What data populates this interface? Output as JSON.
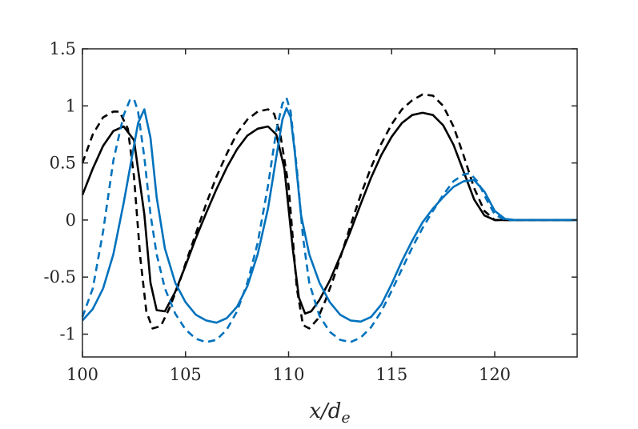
{
  "chart_data": {
    "type": "line",
    "title": "",
    "xlabel": "x/d",
    "xlabel_subscript": "e",
    "ylabel": "",
    "xlim": [
      100,
      124
    ],
    "ylim": [
      -1.2,
      1.5
    ],
    "xticks": [
      100,
      105,
      110,
      115,
      120
    ],
    "xtick_labels": [
      "100",
      "105",
      "110",
      "115",
      "120"
    ],
    "yticks": [
      1.5,
      1,
      0.5,
      0,
      -0.5,
      -1
    ],
    "ytick_labels": [
      "1.5",
      "1",
      "0.5",
      "0",
      "-0.5",
      "-1"
    ],
    "grid": false,
    "legend": "none",
    "series": [
      {
        "color": "#000000",
        "style": "solid",
        "x": [
          100,
          100.5,
          101,
          101.5,
          102,
          102.5,
          103,
          103.3,
          103.6,
          104,
          104.5,
          105,
          105.5,
          106,
          106.5,
          107,
          107.5,
          108,
          108.5,
          109,
          109.4,
          109.8,
          110.2,
          110.5,
          110.8,
          111.1,
          111.5,
          112,
          112.5,
          113,
          113.5,
          114,
          114.5,
          115,
          115.5,
          116,
          116.5,
          117,
          117.5,
          118,
          118.5,
          119,
          119.5,
          120,
          120.5,
          121,
          122,
          123,
          124
        ],
        "y": [
          0.22,
          0.45,
          0.65,
          0.78,
          0.82,
          0.7,
          0.05,
          -0.55,
          -0.79,
          -0.8,
          -0.63,
          -0.4,
          -0.16,
          0.06,
          0.27,
          0.46,
          0.62,
          0.74,
          0.8,
          0.82,
          0.75,
          0.45,
          -0.25,
          -0.68,
          -0.82,
          -0.8,
          -0.7,
          -0.53,
          -0.32,
          -0.1,
          0.14,
          0.37,
          0.57,
          0.73,
          0.85,
          0.92,
          0.94,
          0.92,
          0.83,
          0.66,
          0.42,
          0.18,
          0.04,
          0.0,
          0.0,
          0.0,
          0.0,
          0.0,
          0.0
        ]
      },
      {
        "color": "#000000",
        "style": "dashed",
        "x": [
          100,
          100.5,
          101,
          101.5,
          101.8,
          102.2,
          102.5,
          102.8,
          103.1,
          103.4,
          103.8,
          104.2,
          104.7,
          105,
          105.5,
          106,
          106.5,
          107,
          107.5,
          108,
          108.5,
          109,
          109.3,
          109.6,
          110,
          110.4,
          110.7,
          111,
          111.4,
          111.8,
          112.2,
          112.6,
          113,
          113.5,
          114,
          114.5,
          115,
          115.5,
          116,
          116.5,
          117,
          117.5,
          118,
          118.5,
          119,
          119.5,
          120,
          121,
          124
        ],
        "y": [
          0.5,
          0.75,
          0.9,
          0.95,
          0.95,
          0.8,
          0.38,
          -0.32,
          -0.8,
          -0.95,
          -0.93,
          -0.78,
          -0.55,
          -0.38,
          -0.12,
          0.14,
          0.38,
          0.58,
          0.76,
          0.88,
          0.95,
          0.97,
          0.93,
          0.75,
          0.3,
          -0.6,
          -0.92,
          -0.95,
          -0.87,
          -0.7,
          -0.5,
          -0.28,
          -0.05,
          0.22,
          0.46,
          0.67,
          0.84,
          0.97,
          1.05,
          1.1,
          1.09,
          1.0,
          0.82,
          0.56,
          0.28,
          0.08,
          0.0,
          0.0,
          0.0
        ]
      },
      {
        "color": "#0072BD",
        "style": "solid",
        "x": [
          100,
          100.5,
          101,
          101.5,
          102,
          102.4,
          102.7,
          103,
          103.3,
          103.6,
          104,
          104.5,
          105,
          105.5,
          106,
          106.5,
          107,
          107.5,
          108,
          108.5,
          109,
          109.4,
          109.7,
          109.9,
          110.1,
          110.3,
          110.6,
          111,
          111.5,
          112,
          112.5,
          113,
          113.5,
          114,
          114.5,
          115,
          115.5,
          116,
          116.5,
          117,
          117.5,
          118,
          118.5,
          119,
          119.5,
          120,
          120.5,
          121,
          122,
          124
        ],
        "y": [
          -0.88,
          -0.78,
          -0.6,
          -0.3,
          0.15,
          0.55,
          0.85,
          0.97,
          0.72,
          0.2,
          -0.25,
          -0.55,
          -0.72,
          -0.83,
          -0.88,
          -0.9,
          -0.86,
          -0.76,
          -0.58,
          -0.3,
          0.1,
          0.55,
          0.88,
          0.98,
          0.9,
          0.6,
          0.05,
          -0.3,
          -0.55,
          -0.72,
          -0.83,
          -0.88,
          -0.89,
          -0.85,
          -0.74,
          -0.56,
          -0.36,
          -0.18,
          -0.02,
          0.1,
          0.2,
          0.29,
          0.34,
          0.35,
          0.25,
          0.08,
          0.01,
          0.0,
          0.0,
          0.0
        ]
      },
      {
        "color": "#0072BD",
        "style": "dashed",
        "x": [
          100,
          100.5,
          101,
          101.5,
          102,
          102.3,
          102.5,
          102.7,
          103,
          103.3,
          103.6,
          104,
          104.5,
          105,
          105.5,
          106,
          106.5,
          107,
          107.5,
          108,
          108.5,
          109,
          109.4,
          109.7,
          109.9,
          110.1,
          110.4,
          110.7,
          111,
          111.5,
          112,
          112.5,
          113,
          113.5,
          114,
          114.5,
          115,
          115.5,
          116,
          116.5,
          117,
          117.5,
          118,
          118.5,
          118.8,
          119.2,
          119.6,
          120,
          120.5,
          121
        ],
        "y": [
          -0.85,
          -0.6,
          -0.1,
          0.52,
          0.92,
          1.05,
          1.06,
          0.95,
          0.55,
          0.05,
          -0.3,
          -0.6,
          -0.82,
          -0.96,
          -1.04,
          -1.07,
          -1.05,
          -0.96,
          -0.8,
          -0.55,
          -0.2,
          0.3,
          0.78,
          1.02,
          1.07,
          0.95,
          0.45,
          -0.15,
          -0.55,
          -0.84,
          -0.98,
          -1.05,
          -1.07,
          -1.03,
          -0.94,
          -0.8,
          -0.62,
          -0.43,
          -0.24,
          -0.07,
          0.08,
          0.22,
          0.34,
          0.4,
          0.41,
          0.33,
          0.18,
          0.05,
          0.0,
          0.0
        ]
      }
    ]
  }
}
